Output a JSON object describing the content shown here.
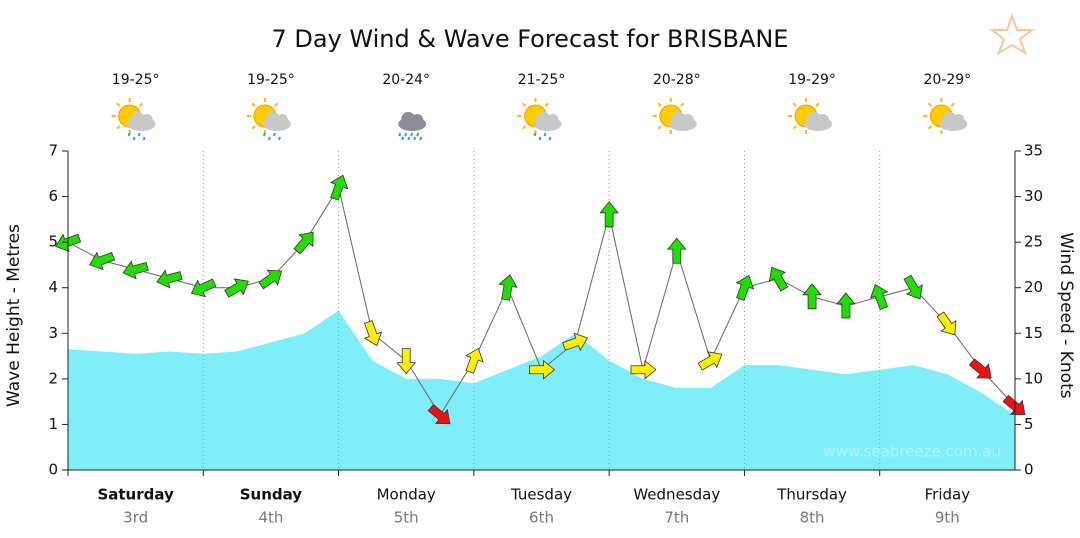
{
  "chart_data": {
    "type": "wind-wave",
    "title": "7 Day Wind & Wave Forecast for BRISBANE",
    "ylabel": "Wave Height - Metres",
    "y2label": "Wind Speed - Knots",
    "watermark": "www.seabreeze.com.au",
    "days": [
      {
        "name": "Saturday",
        "date": "3rd",
        "temp": "19-25°",
        "weather": "showers",
        "bold": true
      },
      {
        "name": "Sunday",
        "date": "4th",
        "temp": "19-25°",
        "weather": "showers",
        "bold": true
      },
      {
        "name": "Monday",
        "date": "5th",
        "temp": "20-24°",
        "weather": "rain",
        "bold": false
      },
      {
        "name": "Tuesday",
        "date": "6th",
        "temp": "21-25°",
        "weather": "showers",
        "bold": false
      },
      {
        "name": "Wednesday",
        "date": "7th",
        "temp": "20-28°",
        "weather": "partly-cloudy",
        "bold": false
      },
      {
        "name": "Thursday",
        "date": "8th",
        "temp": "19-29°",
        "weather": "partly-cloudy",
        "bold": false
      },
      {
        "name": "Friday",
        "date": "9th",
        "temp": "20-29°",
        "weather": "partly-cloudy",
        "bold": false
      }
    ],
    "xlim": [
      0,
      168
    ],
    "x": [
      0,
      6,
      12,
      18,
      24,
      30,
      36,
      42,
      48,
      54,
      60,
      66,
      72,
      78,
      84,
      90,
      96,
      102,
      108,
      114,
      120,
      126,
      132,
      138,
      144,
      150,
      156,
      162,
      168
    ],
    "ylim": [
      0,
      7
    ],
    "yticks": [
      0,
      1,
      2,
      3,
      4,
      5,
      6,
      7
    ],
    "y2lim": [
      0,
      35
    ],
    "y2ticks": [
      0,
      5,
      10,
      15,
      20,
      25,
      30,
      35
    ],
    "series": [
      {
        "color": "#80eef8",
        "values": [
          2.65,
          2.6,
          2.55,
          2.6,
          2.55,
          2.6,
          2.8,
          3.0,
          3.5,
          2.4,
          2.0,
          2.0,
          1.9,
          2.2,
          2.5,
          3.0,
          2.4,
          2.0,
          1.8,
          1.8,
          2.3,
          2.3,
          2.2,
          2.1,
          2.2,
          2.3,
          2.1,
          1.7,
          1.2
        ]
      },
      {
        "axis": "y2",
        "color": "#666666",
        "values": [
          25,
          23,
          22,
          21,
          20,
          20,
          21,
          25,
          31,
          15,
          12,
          6,
          12,
          20,
          11,
          14,
          28,
          11,
          24,
          12,
          20,
          21,
          19,
          18,
          19,
          20,
          16,
          11,
          7
        ],
        "directions": [
          250,
          250,
          255,
          255,
          245,
          60,
          55,
          40,
          20,
          160,
          180,
          130,
          20,
          10,
          90,
          70,
          0,
          90,
          0,
          60,
          20,
          330,
          0,
          0,
          340,
          150,
          145,
          130,
          130
        ],
        "colors": [
          "#22dd00",
          "#22dd00",
          "#22dd00",
          "#22dd00",
          "#22dd00",
          "#22dd00",
          "#22dd00",
          "#22dd00",
          "#22dd00",
          "#ffee00",
          "#ffee00",
          "#ee1111",
          "#ffee00",
          "#22dd00",
          "#ffee00",
          "#ffee00",
          "#22dd00",
          "#ffee00",
          "#22dd00",
          "#ffee00",
          "#22dd00",
          "#22dd00",
          "#22dd00",
          "#22dd00",
          "#22dd00",
          "#22dd00",
          "#ffee00",
          "#ee1111",
          "#ee1111"
        ]
      }
    ]
  }
}
